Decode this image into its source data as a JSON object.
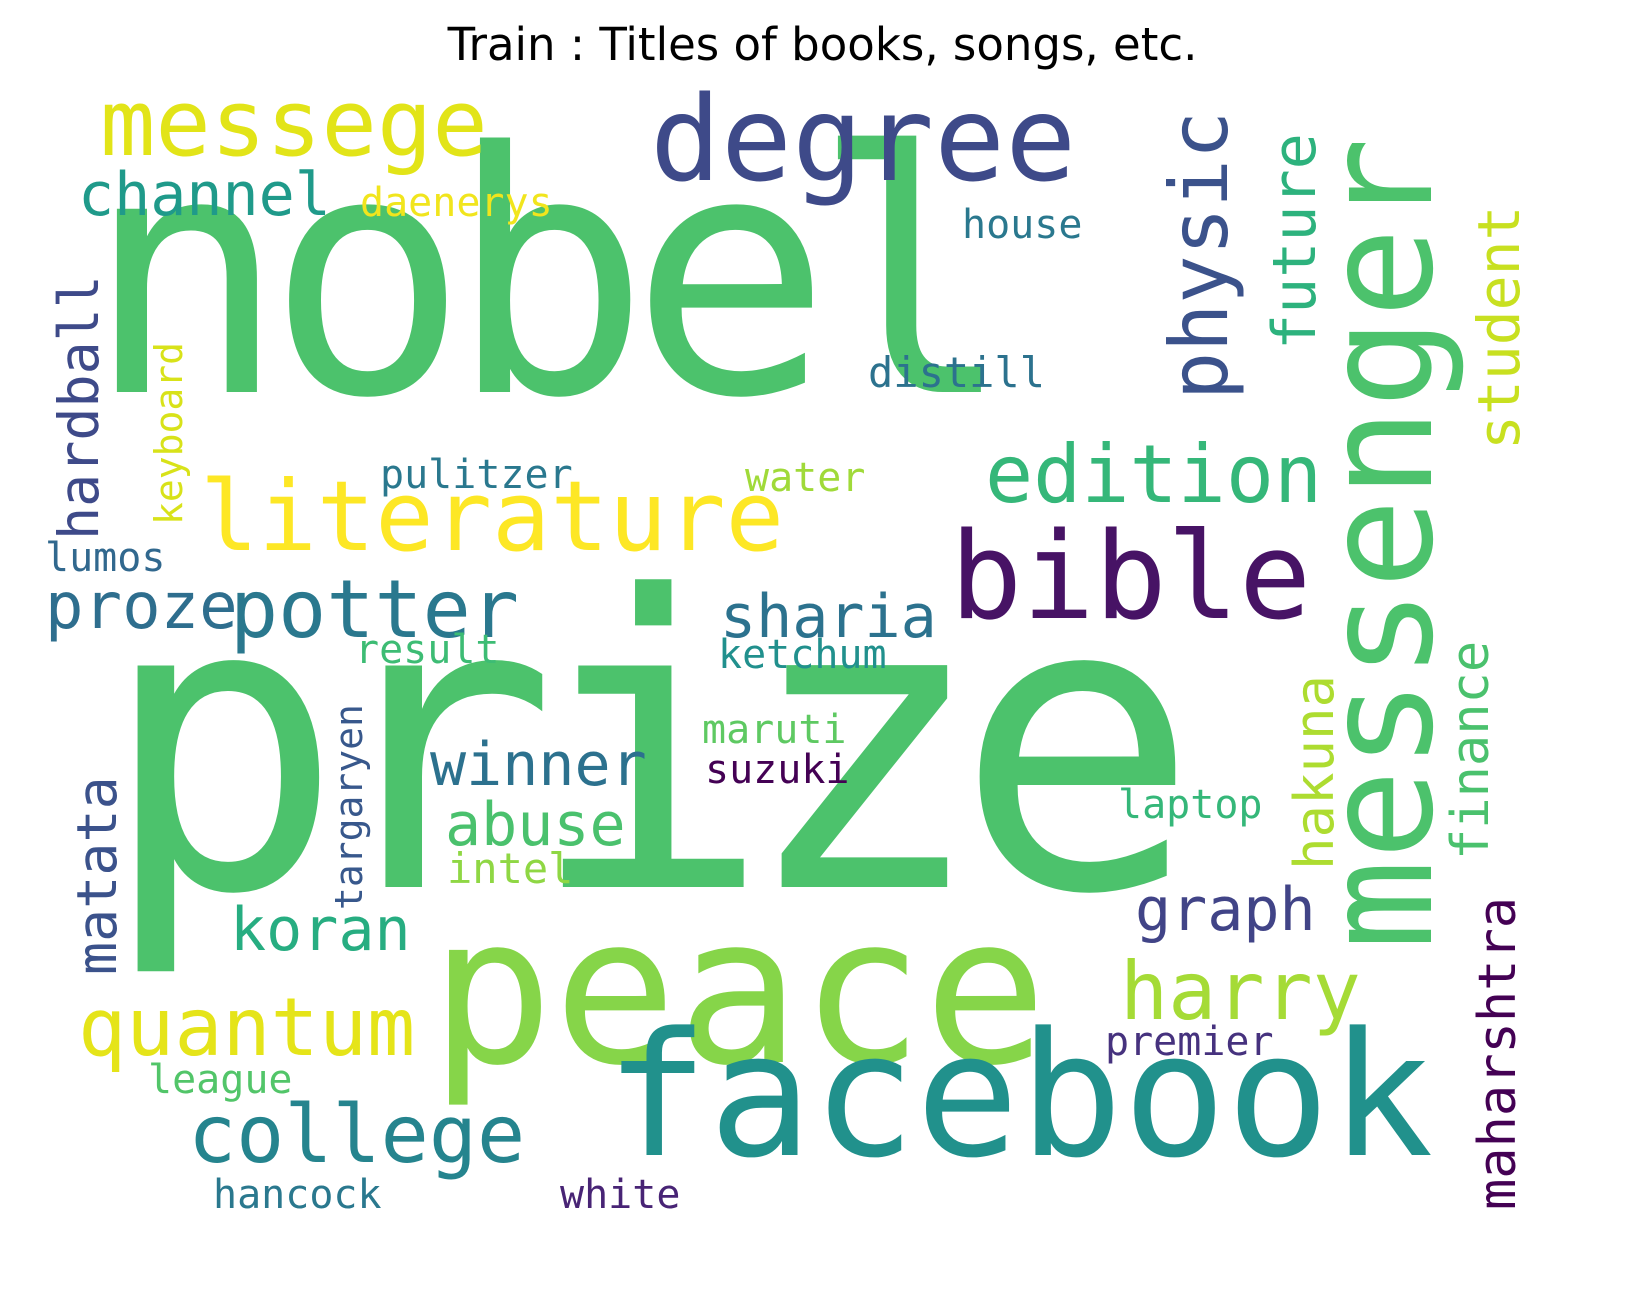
{
  "title": "Train : Titles of books, songs, etc.",
  "words": {
    "nobel": {
      "text": "nobel",
      "color": "#4cc26c"
    },
    "prize": {
      "text": "prize",
      "color": "#4cc26c"
    },
    "peace": {
      "text": "peace",
      "color": "#86d549"
    },
    "facebook": {
      "text": "facebook",
      "color": "#21918c"
    },
    "messenger": {
      "text": "messenger",
      "color": "#4cc26c"
    },
    "degree": {
      "text": "degree",
      "color": "#3e4a89"
    },
    "messege": {
      "text": "messege",
      "color": "#e2e418"
    },
    "literature": {
      "text": "literature",
      "color": "#fde725"
    },
    "bible": {
      "text": "bible",
      "color": "#471365"
    },
    "edition": {
      "text": "edition",
      "color": "#35b779"
    },
    "physic": {
      "text": "physic",
      "color": "#3b528b"
    },
    "future": {
      "text": "future",
      "color": "#2db27d"
    },
    "student": {
      "text": "student",
      "color": "#c8e020"
    },
    "channel": {
      "text": "channel",
      "color": "#1f9a8a"
    },
    "daenerys": {
      "text": "daenerys",
      "color": "#f1e51d"
    },
    "house": {
      "text": "house",
      "color": "#2a788e"
    },
    "distill": {
      "text": "distill",
      "color": "#2c728e"
    },
    "hardball": {
      "text": "hardball",
      "color": "#3e4a89"
    },
    "keyboard": {
      "text": "keyboard",
      "color": "#d8e219"
    },
    "pulitzer": {
      "text": "pulitzer",
      "color": "#2a788e"
    },
    "water": {
      "text": "water",
      "color": "#a0da39"
    },
    "lumos": {
      "text": "lumos",
      "color": "#31688e"
    },
    "proze": {
      "text": "proze",
      "color": "#2e6e8e"
    },
    "potter": {
      "text": "potter",
      "color": "#2a788e"
    },
    "sharia": {
      "text": "sharia",
      "color": "#2c728e"
    },
    "result": {
      "text": "result",
      "color": "#3dbc74"
    },
    "ketchum": {
      "text": "ketchum",
      "color": "#21908d"
    },
    "targaryen": {
      "text": "targaryen",
      "color": "#38588c"
    },
    "winner": {
      "text": "winner",
      "color": "#2c718e"
    },
    "maruti": {
      "text": "maruti",
      "color": "#5ec962"
    },
    "suzuki": {
      "text": "suzuki",
      "color": "#440154"
    },
    "hakuna": {
      "text": "hakuna",
      "color": "#addc30"
    },
    "finance": {
      "text": "finance",
      "color": "#4ac16d"
    },
    "matata": {
      "text": "matata",
      "color": "#3b528b"
    },
    "abuse": {
      "text": "abuse",
      "color": "#4ac16d"
    },
    "laptop": {
      "text": "laptop",
      "color": "#35b779"
    },
    "intel": {
      "text": "intel",
      "color": "#8fd744"
    },
    "maharshtra": {
      "text": "maharshtra",
      "color": "#440154"
    },
    "koran": {
      "text": "koran",
      "color": "#27ad81"
    },
    "graph": {
      "text": "graph",
      "color": "#414487"
    },
    "quantum": {
      "text": "quantum",
      "color": "#e5e419"
    },
    "harry": {
      "text": "harry",
      "color": "#a5db36"
    },
    "premier": {
      "text": "premier",
      "color": "#46327e"
    },
    "league": {
      "text": "league",
      "color": "#52c569"
    },
    "college": {
      "text": "college",
      "color": "#25848e"
    },
    "hancock": {
      "text": "hancock",
      "color": "#2a788e"
    },
    "white": {
      "text": "white",
      "color": "#482475"
    }
  }
}
